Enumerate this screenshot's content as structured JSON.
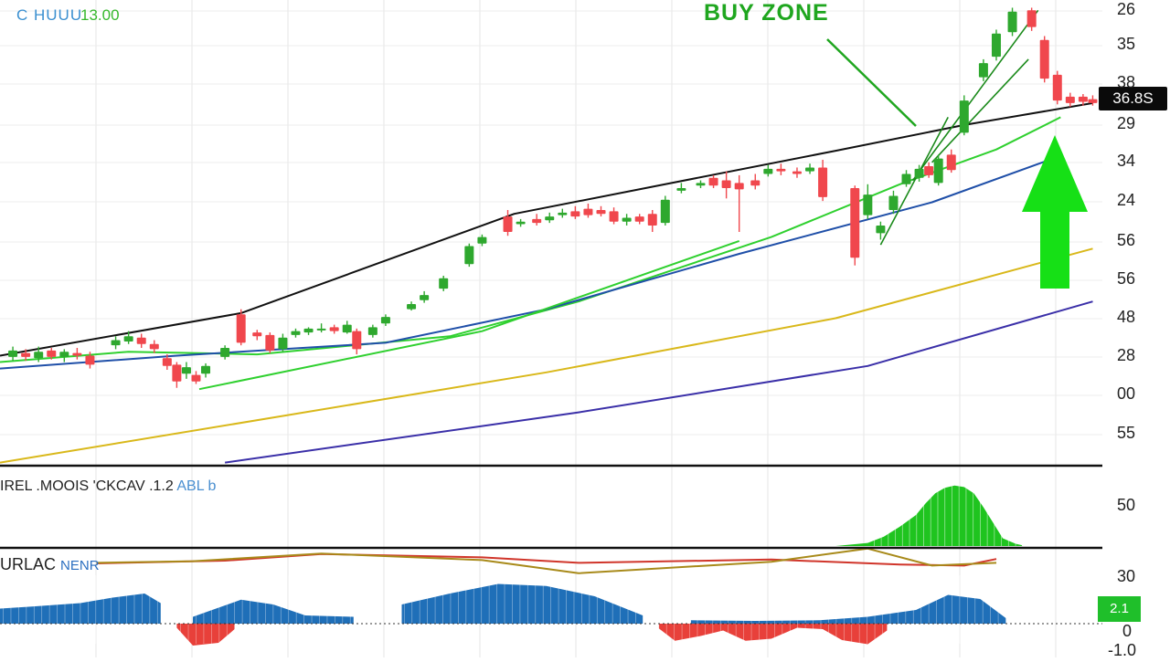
{
  "header": {
    "symbol": "C HUUU",
    "value": "13.00"
  },
  "annotation": {
    "buy_zone": "BUY ZONE"
  },
  "price_tag": "36.8S",
  "colors": {
    "up": "#2ea82e",
    "down": "#f0474d",
    "trend_black": "#111111",
    "ma_green": "#2fd02f",
    "ma_blue": "#1f4fa8",
    "ma_yellow": "#d9b81a",
    "ma_purple": "#3a2fa8",
    "hist_blue": "#1f6fb8",
    "hist_red": "#e8403a",
    "hist_green": "#1fc41f",
    "arrow": "#16e016"
  },
  "chart_data": [
    {
      "type": "candlestick",
      "panel": "price",
      "right_axis_labels": [
        "26",
        "35",
        "38",
        "29",
        "34",
        "24",
        "56",
        "56",
        "48",
        "28",
        "00",
        "55"
      ],
      "candles": [
        {
          "x": 4,
          "o": 29.9,
          "c": 30.4,
          "h": 30.7,
          "l": 29.6
        },
        {
          "x": 8,
          "o": 30.2,
          "c": 29.9,
          "h": 30.5,
          "l": 29.6
        },
        {
          "x": 12,
          "o": 29.8,
          "c": 30.3,
          "h": 30.7,
          "l": 29.5
        },
        {
          "x": 16,
          "o": 30.4,
          "c": 29.9,
          "h": 30.6,
          "l": 29.7
        },
        {
          "x": 20,
          "o": 29.9,
          "c": 30.3,
          "h": 30.5,
          "l": 29.5
        },
        {
          "x": 24,
          "o": 30.2,
          "c": 30.0,
          "h": 30.6,
          "l": 29.7
        },
        {
          "x": 28,
          "o": 30.0,
          "c": 29.3,
          "h": 30.3,
          "l": 29.0
        },
        {
          "x": 36,
          "o": 30.8,
          "c": 31.2,
          "h": 31.5,
          "l": 30.5
        },
        {
          "x": 40,
          "o": 31.1,
          "c": 31.5,
          "h": 31.9,
          "l": 30.9
        },
        {
          "x": 44,
          "o": 31.4,
          "c": 30.9,
          "h": 31.7,
          "l": 30.6
        },
        {
          "x": 48,
          "o": 30.9,
          "c": 30.5,
          "h": 31.2,
          "l": 30.2
        },
        {
          "x": 52,
          "o": 29.8,
          "c": 29.2,
          "h": 30.1,
          "l": 28.9
        },
        {
          "x": 55,
          "o": 29.3,
          "c": 28.0,
          "h": 29.5,
          "l": 27.5
        },
        {
          "x": 58,
          "o": 28.6,
          "c": 29.1,
          "h": 29.5,
          "l": 28.2
        },
        {
          "x": 61,
          "o": 28.5,
          "c": 28.0,
          "h": 28.8,
          "l": 27.8
        },
        {
          "x": 64,
          "o": 28.6,
          "c": 29.2,
          "h": 29.4,
          "l": 28.3
        },
        {
          "x": 70,
          "o": 29.9,
          "c": 30.6,
          "h": 30.8,
          "l": 29.7
        },
        {
          "x": 75,
          "o": 33.2,
          "c": 31.0,
          "h": 33.6,
          "l": 30.8
        },
        {
          "x": 80,
          "o": 31.8,
          "c": 31.5,
          "h": 32.0,
          "l": 31.2
        },
        {
          "x": 84,
          "o": 31.6,
          "c": 30.4,
          "h": 31.8,
          "l": 30.2
        },
        {
          "x": 88,
          "o": 30.5,
          "c": 31.4,
          "h": 31.7,
          "l": 30.3
        },
        {
          "x": 92,
          "o": 31.6,
          "c": 31.9,
          "h": 32.1,
          "l": 31.4
        },
        {
          "x": 96,
          "o": 31.8,
          "c": 32.1,
          "h": 32.2,
          "l": 31.6
        },
        {
          "x": 100,
          "o": 32.0,
          "c": 32.1,
          "h": 32.5,
          "l": 31.8
        },
        {
          "x": 104,
          "o": 32.2,
          "c": 31.9,
          "h": 32.4,
          "l": 31.7
        },
        {
          "x": 108,
          "o": 31.8,
          "c": 32.4,
          "h": 32.7,
          "l": 31.7
        },
        {
          "x": 111,
          "o": 31.9,
          "c": 30.5,
          "h": 32.1,
          "l": 30.1
        },
        {
          "x": 116,
          "o": 31.6,
          "c": 32.2,
          "h": 32.4,
          "l": 31.4
        },
        {
          "x": 120,
          "o": 32.5,
          "c": 33.0,
          "h": 33.2,
          "l": 32.3
        },
        {
          "x": 128,
          "o": 33.6,
          "c": 34.0,
          "h": 34.2,
          "l": 33.5
        },
        {
          "x": 132,
          "o": 34.3,
          "c": 34.7,
          "h": 35.0,
          "l": 34.1
        },
        {
          "x": 138,
          "o": 35.2,
          "c": 36.0,
          "h": 36.2,
          "l": 35.0
        },
        {
          "x": 146,
          "o": 37.1,
          "c": 38.5,
          "h": 38.7,
          "l": 36.9
        },
        {
          "x": 150,
          "o": 38.7,
          "c": 39.2,
          "h": 39.4,
          "l": 38.5
        },
        {
          "x": 158,
          "o": 40.8,
          "c": 39.6,
          "h": 41.3,
          "l": 39.3
        },
        {
          "x": 162,
          "o": 40.2,
          "c": 40.4,
          "h": 40.6,
          "l": 40.0
        },
        {
          "x": 167,
          "o": 40.6,
          "c": 40.3,
          "h": 41.0,
          "l": 40.1
        },
        {
          "x": 171,
          "o": 40.5,
          "c": 40.8,
          "h": 41.1,
          "l": 40.3
        },
        {
          "x": 175,
          "o": 40.9,
          "c": 41.1,
          "h": 41.4,
          "l": 40.7
        },
        {
          "x": 179,
          "o": 41.2,
          "c": 40.8,
          "h": 41.6,
          "l": 40.6
        },
        {
          "x": 183,
          "o": 41.4,
          "c": 40.9,
          "h": 41.8,
          "l": 40.7
        },
        {
          "x": 187,
          "o": 41.3,
          "c": 41.0,
          "h": 41.6,
          "l": 40.8
        },
        {
          "x": 191,
          "o": 41.2,
          "c": 40.4,
          "h": 41.5,
          "l": 40.2
        },
        {
          "x": 195,
          "o": 40.4,
          "c": 40.7,
          "h": 41.0,
          "l": 40.1
        },
        {
          "x": 199,
          "o": 40.8,
          "c": 40.4,
          "h": 41.0,
          "l": 40.2
        },
        {
          "x": 203,
          "o": 41.0,
          "c": 40.1,
          "h": 41.3,
          "l": 39.6
        },
        {
          "x": 207,
          "o": 40.3,
          "c": 42.1,
          "h": 42.4,
          "l": 40.1
        },
        {
          "x": 212,
          "o": 42.8,
          "c": 43.0,
          "h": 43.4,
          "l": 42.6
        },
        {
          "x": 218,
          "o": 43.2,
          "c": 43.4,
          "h": 43.6,
          "l": 43.0
        },
        {
          "x": 222,
          "o": 43.8,
          "c": 43.2,
          "h": 44.0,
          "l": 43.0
        },
        {
          "x": 226,
          "o": 43.6,
          "c": 43.0,
          "h": 44.3,
          "l": 42.2
        },
        {
          "x": 230,
          "o": 43.4,
          "c": 42.9,
          "h": 44.0,
          "l": 39.6
        },
        {
          "x": 235,
          "o": 43.6,
          "c": 43.2,
          "h": 44.1,
          "l": 42.9
        },
        {
          "x": 239,
          "o": 44.1,
          "c": 44.5,
          "h": 44.8,
          "l": 43.9
        },
        {
          "x": 243,
          "o": 44.5,
          "c": 44.3,
          "h": 44.9,
          "l": 44.0
        },
        {
          "x": 248,
          "o": 44.3,
          "c": 44.1,
          "h": 44.6,
          "l": 43.8
        },
        {
          "x": 252,
          "o": 44.3,
          "c": 44.6,
          "h": 44.9,
          "l": 44.1
        },
        {
          "x": 256,
          "o": 44.6,
          "c": 42.3,
          "h": 45.2,
          "l": 42.0
        },
        {
          "x": 266,
          "o": 43.0,
          "c": 37.6,
          "h": 43.2,
          "l": 37.0
        },
        {
          "x": 270,
          "o": 40.9,
          "c": 42.5,
          "h": 43.3,
          "l": 40.6
        },
        {
          "x": 274,
          "o": 39.5,
          "c": 40.1,
          "h": 40.4,
          "l": 39.0
        },
        {
          "x": 278,
          "o": 41.3,
          "c": 42.4,
          "h": 42.8,
          "l": 41.0
        },
        {
          "x": 282,
          "o": 43.3,
          "c": 44.1,
          "h": 44.4,
          "l": 43.1
        },
        {
          "x": 286,
          "o": 43.8,
          "c": 44.5,
          "h": 44.8,
          "l": 43.5
        },
        {
          "x": 289,
          "o": 44.7,
          "c": 44.0,
          "h": 45.0,
          "l": 43.8
        },
        {
          "x": 292,
          "o": 43.4,
          "c": 45.3,
          "h": 45.6,
          "l": 43.2
        },
        {
          "x": 296,
          "o": 45.6,
          "c": 44.4,
          "h": 46.0,
          "l": 44.2
        },
        {
          "x": 300,
          "o": 47.3,
          "c": 49.8,
          "h": 50.2,
          "l": 47.1
        },
        {
          "x": 306,
          "o": 51.6,
          "c": 52.7,
          "h": 53.0,
          "l": 51.3
        },
        {
          "x": 310,
          "o": 53.2,
          "c": 55.0,
          "h": 55.3,
          "l": 52.9
        },
        {
          "x": 315,
          "o": 55.1,
          "c": 56.7,
          "h": 57.0,
          "l": 54.8
        },
        {
          "x": 321,
          "o": 56.8,
          "c": 55.5,
          "h": 57.0,
          "l": 55.2
        },
        {
          "x": 325,
          "o": 54.5,
          "c": 51.5,
          "h": 54.8,
          "l": 51.2
        },
        {
          "x": 329,
          "o": 51.8,
          "c": 49.8,
          "h": 52.1,
          "l": 49.5
        },
        {
          "x": 333,
          "o": 50.1,
          "c": 49.6,
          "h": 50.4,
          "l": 49.3
        },
        {
          "x": 337,
          "o": 50.1,
          "c": 49.7,
          "h": 50.3,
          "l": 49.4
        },
        {
          "x": 340,
          "o": 49.9,
          "c": 49.6,
          "h": 50.2,
          "l": 49.4
        }
      ],
      "lines": [
        {
          "name": "trend_black",
          "color": "#111111",
          "points": [
            [
              0,
              30.0
            ],
            [
              75,
              33.3
            ],
            [
              160,
              41.0
            ],
            [
              260,
              45.9
            ],
            [
              300,
              47.9
            ],
            [
              340,
              49.6
            ]
          ]
        },
        {
          "name": "ma_green",
          "color": "#2fd02f",
          "points": [
            [
              0,
              29.5
            ],
            [
              40,
              30.3
            ],
            [
              80,
              30.1
            ],
            [
              140,
              31.5
            ],
            [
              180,
              34.2
            ],
            [
              240,
              39.2
            ],
            [
              280,
              43.3
            ],
            [
              310,
              46.0
            ],
            [
              330,
              48.5
            ]
          ]
        },
        {
          "name": "ma_blue",
          "color": "#1f4fa8",
          "points": [
            [
              0,
              29.0
            ],
            [
              55,
              30.0
            ],
            [
              120,
              31.0
            ],
            [
              170,
              33.6
            ],
            [
              230,
              37.9
            ],
            [
              290,
              41.9
            ],
            [
              330,
              45.5
            ]
          ]
        },
        {
          "name": "ma_yellow",
          "color": "#d9b81a",
          "points": [
            [
              0,
              21.7
            ],
            [
              90,
              25.4
            ],
            [
              170,
              28.7
            ],
            [
              260,
              32.9
            ],
            [
              340,
              38.3
            ]
          ]
        },
        {
          "name": "ma_purple",
          "color": "#3a2fa8",
          "points": [
            [
              70,
              21.7
            ],
            [
              180,
              25.6
            ],
            [
              270,
              29.2
            ],
            [
              340,
              34.2
            ]
          ]
        },
        {
          "name": "green_support",
          "color": "#2fd02f",
          "points": [
            [
              62,
              27.4
            ],
            [
              150,
              31.9
            ],
            [
              230,
              38.9
            ]
          ]
        }
      ],
      "ylim": [
        21.6,
        57.6
      ],
      "xlim": [
        0,
        343
      ]
    },
    {
      "type": "histogram",
      "panel": "volume",
      "title_text": "IREL .MOOIS 'CKCAV .1.2",
      "title_tail": "ABL b",
      "right_label": "50",
      "series": [
        {
          "color": "#1fc41f",
          "points": [
            [
              0,
              0
            ],
            [
              60,
              0
            ],
            [
              120,
              0
            ],
            [
              260,
              0
            ],
            [
              270,
              4
            ],
            [
              275,
              12
            ],
            [
              280,
              25
            ],
            [
              285,
              40
            ],
            [
              288,
              55
            ],
            [
              291,
              68
            ],
            [
              294,
              75
            ],
            [
              297,
              78
            ],
            [
              300,
              76
            ],
            [
              303,
              68
            ],
            [
              306,
              50
            ],
            [
              309,
              30
            ],
            [
              312,
              10
            ],
            [
              316,
              3
            ],
            [
              318,
              1
            ]
          ]
        }
      ]
    },
    {
      "type": "histogram",
      "panel": "macd",
      "title_text": "URLAC",
      "title_tail": "NENR",
      "right_labels": [
        "30",
        "0",
        "-1.0"
      ],
      "right_badge": "2.1",
      "lines": [
        {
          "name": "signal_red",
          "color": "#d0352a",
          "points": [
            [
              30,
              10
            ],
            [
              70,
              15
            ],
            [
              100,
              27
            ],
            [
              150,
              21
            ],
            [
              180,
              11
            ],
            [
              240,
              17
            ],
            [
              280,
              8
            ],
            [
              300,
              6
            ],
            [
              310,
              18
            ]
          ]
        },
        {
          "name": "macd_olive",
          "color": "#a88a1a",
          "points": [
            [
              30,
              11
            ],
            [
              60,
              14
            ],
            [
              100,
              28
            ],
            [
              150,
              16
            ],
            [
              180,
              -8
            ],
            [
              240,
              13
            ],
            [
              270,
              37
            ],
            [
              290,
              6
            ],
            [
              310,
              11
            ]
          ]
        }
      ],
      "bars_positive": [
        [
          0,
          22
        ],
        [
          10,
          25
        ],
        [
          25,
          30
        ],
        [
          35,
          38
        ],
        [
          45,
          44
        ],
        [
          50,
          30
        ],
        [
          60,
          10
        ],
        [
          75,
          35
        ],
        [
          85,
          28
        ],
        [
          95,
          12
        ],
        [
          110,
          10
        ],
        [
          125,
          28
        ],
        [
          140,
          44
        ],
        [
          155,
          58
        ],
        [
          170,
          55
        ],
        [
          185,
          40
        ],
        [
          200,
          12
        ],
        [
          215,
          5
        ],
        [
          235,
          4
        ],
        [
          255,
          5
        ],
        [
          270,
          10
        ],
        [
          285,
          20
        ],
        [
          295,
          42
        ],
        [
          305,
          36
        ],
        [
          313,
          8
        ]
      ],
      "bars_negative": [
        [
          55,
          -6
        ],
        [
          60,
          -32
        ],
        [
          68,
          -28
        ],
        [
          73,
          -8
        ],
        [
          205,
          -7
        ],
        [
          210,
          -25
        ],
        [
          218,
          -18
        ],
        [
          225,
          -10
        ],
        [
          232,
          -25
        ],
        [
          240,
          -22
        ],
        [
          248,
          -6
        ],
        [
          256,
          -8
        ],
        [
          262,
          -24
        ],
        [
          270,
          -30
        ],
        [
          276,
          -10
        ]
      ]
    }
  ]
}
